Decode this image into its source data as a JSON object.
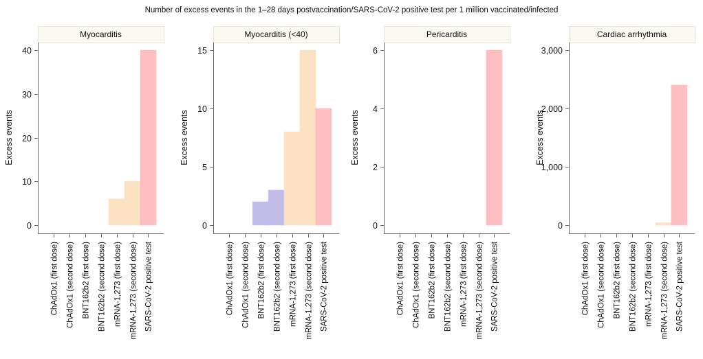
{
  "title": "Number of excess events in the 1–28 days postvaccination/SARS-CoV-2 positive test per 1 million vaccinated/infected",
  "chart_data": {
    "type": "bar",
    "title": "Number of excess events in the 1–28 days postvaccination/SARS-CoV-2 positive test per 1 million vaccinated/infected",
    "categories": [
      "ChAdOx1 (first dose)",
      "ChAdOx1 (second dose)",
      "BNT162b2 (first dose)",
      "BNT162b2 (second dose)",
      "mRNA-1,273 (first dose)",
      "mRNA-1,273 (second dose)",
      "SARS-CoV-2 positive test"
    ],
    "category_colors": [
      "#a6d9c4",
      "#a6d9c4",
      "#bdbbe8",
      "#bdbbe8",
      "#fddfc0",
      "#fddfc0",
      "#fdbcbe"
    ],
    "panels": [
      {
        "name": "Myocarditis",
        "ylabel": "Excess events",
        "ylim": [
          0,
          40
        ],
        "yticks": [
          0,
          10,
          20,
          30,
          40
        ],
        "ytick_labels": [
          "0",
          "10",
          "20",
          "30",
          "40"
        ],
        "values": [
          0,
          0,
          0,
          0,
          6,
          10,
          40
        ]
      },
      {
        "name": "Myocarditis (<40)",
        "ylabel": "Excess events",
        "ylim": [
          0,
          15
        ],
        "yticks": [
          0,
          5,
          10,
          15
        ],
        "ytick_labels": [
          "0",
          "5",
          "10",
          "15"
        ],
        "values": [
          0,
          0,
          2,
          3,
          8,
          15,
          10
        ]
      },
      {
        "name": "Pericarditis",
        "ylabel": "Excess events",
        "ylim": [
          0,
          6
        ],
        "yticks": [
          0,
          2,
          4,
          6
        ],
        "ytick_labels": [
          "0",
          "2",
          "4",
          "6"
        ],
        "values": [
          0,
          0,
          0,
          0,
          0,
          0,
          6
        ]
      },
      {
        "name": "Cardiac arrhythmia",
        "ylabel": "Excess events",
        "ylim": [
          0,
          3000
        ],
        "yticks": [
          0,
          1000,
          2000,
          3000
        ],
        "ytick_labels": [
          "0",
          "1,000",
          "2,000",
          "3,000"
        ],
        "values": [
          0,
          0,
          0,
          0,
          0,
          40,
          2400
        ]
      }
    ],
    "xlabel": "",
    "grid": false,
    "legend": "none"
  }
}
